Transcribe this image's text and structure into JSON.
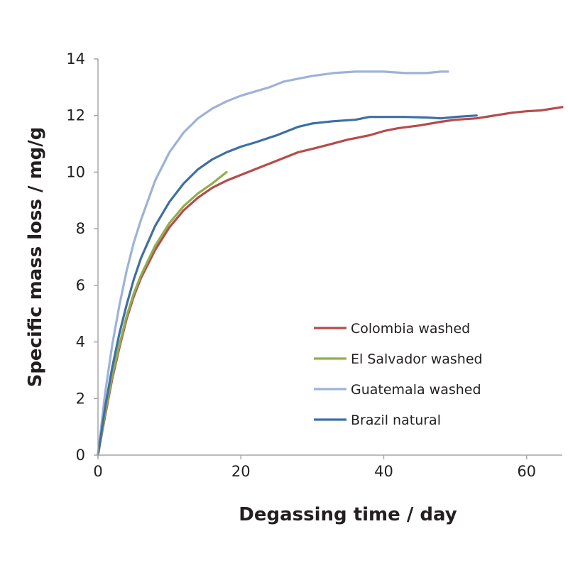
{
  "chart_data": {
    "type": "line",
    "title": "",
    "xlabel": "Degassing time / day",
    "ylabel": "Specific mass loss / mg/g",
    "xlim": [
      0,
      65
    ],
    "ylim": [
      0,
      14
    ],
    "xticks": [
      0,
      20,
      40,
      60
    ],
    "yticks": [
      0,
      2,
      4,
      6,
      8,
      10,
      12,
      14
    ],
    "grid": false,
    "legend_position": "bottom-right",
    "series": [
      {
        "name": "Colombia washed",
        "color": "#b84a4a",
        "points": [
          [
            0,
            0
          ],
          [
            1,
            1.4
          ],
          [
            2,
            2.7
          ],
          [
            3,
            3.8
          ],
          [
            4,
            4.8
          ],
          [
            5,
            5.6
          ],
          [
            6,
            6.25
          ],
          [
            8,
            7.25
          ],
          [
            10,
            8.05
          ],
          [
            12,
            8.65
          ],
          [
            14,
            9.1
          ],
          [
            16,
            9.45
          ],
          [
            18,
            9.7
          ],
          [
            20,
            9.9
          ],
          [
            22,
            10.1
          ],
          [
            25,
            10.4
          ],
          [
            28,
            10.7
          ],
          [
            30,
            10.82
          ],
          [
            32,
            10.95
          ],
          [
            35,
            11.15
          ],
          [
            38,
            11.3
          ],
          [
            40,
            11.45
          ],
          [
            42,
            11.55
          ],
          [
            45,
            11.65
          ],
          [
            48,
            11.78
          ],
          [
            50,
            11.85
          ],
          [
            53,
            11.9
          ],
          [
            55,
            11.98
          ],
          [
            58,
            12.1
          ],
          [
            60,
            12.15
          ],
          [
            62,
            12.18
          ],
          [
            65,
            12.3
          ]
        ]
      },
      {
        "name": "El Salvador washed",
        "color": "#8db04e",
        "points": [
          [
            0,
            0
          ],
          [
            1,
            1.5
          ],
          [
            2,
            2.8
          ],
          [
            3,
            3.9
          ],
          [
            4,
            4.9
          ],
          [
            5,
            5.7
          ],
          [
            6,
            6.35
          ],
          [
            8,
            7.4
          ],
          [
            10,
            8.2
          ],
          [
            12,
            8.8
          ],
          [
            14,
            9.25
          ],
          [
            16,
            9.6
          ],
          [
            18,
            10.0
          ]
        ]
      },
      {
        "name": "Guatemala washed",
        "color": "#9db3d6",
        "points": [
          [
            0,
            0
          ],
          [
            1,
            2.2
          ],
          [
            2,
            3.9
          ],
          [
            3,
            5.3
          ],
          [
            4,
            6.5
          ],
          [
            5,
            7.5
          ],
          [
            6,
            8.3
          ],
          [
            8,
            9.7
          ],
          [
            10,
            10.7
          ],
          [
            12,
            11.4
          ],
          [
            14,
            11.9
          ],
          [
            16,
            12.25
          ],
          [
            18,
            12.5
          ],
          [
            20,
            12.7
          ],
          [
            22,
            12.85
          ],
          [
            24,
            13.0
          ],
          [
            26,
            13.2
          ],
          [
            28,
            13.3
          ],
          [
            30,
            13.4
          ],
          [
            33,
            13.5
          ],
          [
            36,
            13.55
          ],
          [
            38,
            13.55
          ],
          [
            40,
            13.55
          ],
          [
            43,
            13.5
          ],
          [
            46,
            13.5
          ],
          [
            48,
            13.55
          ],
          [
            49,
            13.55
          ]
        ]
      },
      {
        "name": "Brazil natural",
        "color": "#3e6fa3",
        "points": [
          [
            0,
            0
          ],
          [
            1,
            1.7
          ],
          [
            2,
            3.1
          ],
          [
            3,
            4.3
          ],
          [
            4,
            5.3
          ],
          [
            5,
            6.2
          ],
          [
            6,
            6.95
          ],
          [
            8,
            8.1
          ],
          [
            10,
            8.95
          ],
          [
            12,
            9.6
          ],
          [
            14,
            10.1
          ],
          [
            16,
            10.45
          ],
          [
            18,
            10.7
          ],
          [
            20,
            10.9
          ],
          [
            22,
            11.05
          ],
          [
            25,
            11.3
          ],
          [
            28,
            11.6
          ],
          [
            30,
            11.72
          ],
          [
            33,
            11.8
          ],
          [
            36,
            11.85
          ],
          [
            38,
            11.95
          ],
          [
            40,
            11.95
          ],
          [
            43,
            11.95
          ],
          [
            46,
            11.93
          ],
          [
            48,
            11.9
          ],
          [
            50,
            11.95
          ],
          [
            53,
            12.0
          ]
        ]
      }
    ]
  }
}
